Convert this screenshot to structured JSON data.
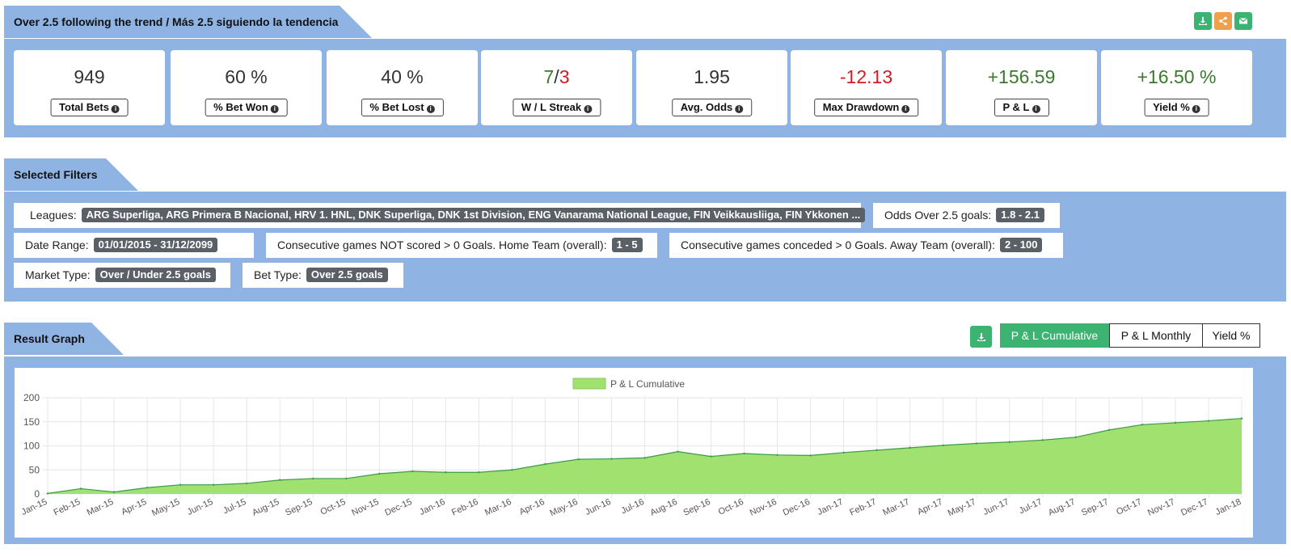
{
  "strategy": {
    "title": "Over 2.5 following the trend / Más 2.5 siguiendo la tendencia",
    "icons": [
      "download-icon",
      "share-icon",
      "envelope-icon"
    ]
  },
  "stats": [
    {
      "value": "949",
      "label": "Total Bets",
      "color": "#333333"
    },
    {
      "value": "60 %",
      "label": "% Bet Won",
      "color": "#333333"
    },
    {
      "value": "40 %",
      "label": "% Bet Lost",
      "color": "#333333"
    },
    {
      "value_win": "7",
      "sep": "/",
      "value_loss": "3",
      "label": "W / L Streak"
    },
    {
      "value": "1.95",
      "label": "Avg. Odds",
      "color": "#333333"
    },
    {
      "value": "-12.13",
      "label": "Max Drawdown",
      "color": "#d41a22"
    },
    {
      "value": "+156.59",
      "label": "P & L",
      "color": "#3a7a2c"
    },
    {
      "value": "+16.50 %",
      "label": "Yield %",
      "color": "#3a7a2c"
    }
  ],
  "filters": {
    "title": "Selected Filters",
    "leagues_label": "Leagues:",
    "leagues_value": "ARG Superliga, ARG Primera B Nacional, HRV 1. HNL, DNK Superliga, DNK 1st Division, ENG Vanarama National League, FIN Veikkausliiga, FIN Ykkonen ...",
    "odds_label": "Odds Over 2.5 goals:",
    "odds_value": "1.8 - 2.1",
    "date_label": "Date Range:",
    "date_value": "01/01/2015 - 31/12/2099",
    "notscored_label": "Consecutive games NOT scored > 0 Goals. Home Team (overall):",
    "notscored_value": "1 - 5",
    "conceded_label": "Consecutive games conceded > 0 Goals. Away Team (overall):",
    "conceded_value": "2 - 100",
    "market_label": "Market Type:",
    "market_value": "Over / Under 2.5 goals",
    "bet_label": "Bet Type:",
    "bet_value": "Over 2.5 goals"
  },
  "graph": {
    "title": "Result Graph",
    "tabs": [
      "P & L Cumulative",
      "P & L Monthly",
      "Yield %"
    ],
    "active_tab": "P & L Cumulative",
    "accent": "#3cb371"
  },
  "chart_data": {
    "type": "area",
    "legend": "P & L Cumulative",
    "legend_position": "top-center",
    "fill_color": "#a1e170",
    "line_color": "#3c9a4a",
    "grid": true,
    "ylim": [
      0,
      200
    ],
    "yticks": [
      0,
      50,
      100,
      150,
      200
    ],
    "x": [
      "Jan-15",
      "Feb-15",
      "Mar-15",
      "Apr-15",
      "May-15",
      "Jun-15",
      "Jul-15",
      "Aug-15",
      "Sep-15",
      "Oct-15",
      "Nov-15",
      "Dec-15",
      "Jan-16",
      "Feb-16",
      "Mar-16",
      "Apr-16",
      "May-16",
      "Jun-16",
      "Jul-16",
      "Aug-16",
      "Sep-16",
      "Oct-16",
      "Nov-16",
      "Dec-16",
      "Jan-17",
      "Feb-17",
      "Mar-17",
      "Apr-17",
      "May-17",
      "Jun-17",
      "Jul-17",
      "Aug-17",
      "Sep-17",
      "Oct-17",
      "Nov-17",
      "Dec-17",
      "Jan-18"
    ],
    "values": [
      1,
      11,
      4,
      13,
      19,
      19,
      22,
      29,
      32,
      32,
      42,
      47,
      45,
      45,
      50,
      62,
      72,
      73,
      75,
      88,
      78,
      84,
      81,
      80,
      86,
      91,
      96,
      101,
      105,
      108,
      112,
      118,
      133,
      144,
      148,
      152,
      157
    ]
  }
}
